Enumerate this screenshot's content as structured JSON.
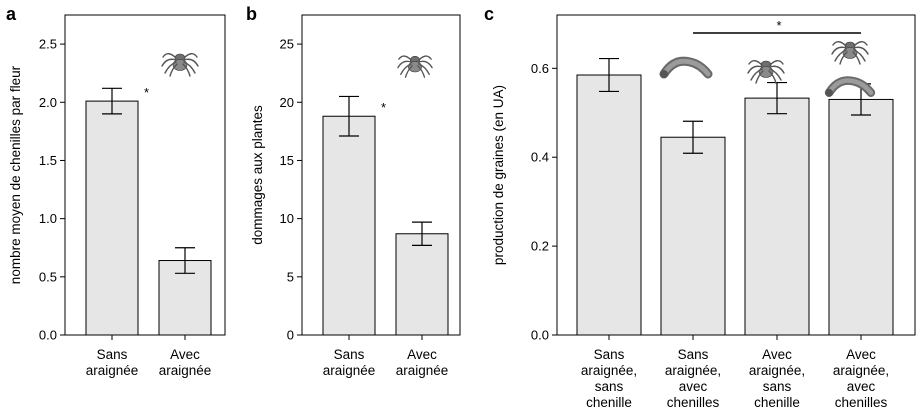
{
  "colors": {
    "bar_fill": "#e6e6e6",
    "stroke": "#000000",
    "icon": "#7a7a7a"
  },
  "chart_data": [
    {
      "panel": "a",
      "type": "bar",
      "ylabel": "nombre moyen de chenilles par fleur",
      "ylim": [
        0,
        2.75
      ],
      "yticks": [
        "0.0",
        "0.5",
        "1.0",
        "1.5",
        "2.0",
        "2.5"
      ],
      "categories": [
        [
          "Sans",
          "araignée"
        ],
        [
          "Avec",
          "araignée"
        ]
      ],
      "values": [
        2.01,
        0.64
      ],
      "errors": [
        0.11,
        0.11
      ],
      "significance": "*",
      "icons": [
        "spider-icon"
      ],
      "grid": false
    },
    {
      "panel": "b",
      "type": "bar",
      "ylabel": "dommages aux plantes",
      "ylim": [
        0,
        27.5
      ],
      "yticks": [
        "0",
        "5",
        "10",
        "15",
        "20",
        "25"
      ],
      "categories": [
        [
          "Sans",
          "araignée"
        ],
        [
          "Avec",
          "araignée"
        ]
      ],
      "values": [
        18.8,
        8.7
      ],
      "errors": [
        1.7,
        1.0
      ],
      "significance": "*",
      "icons": [
        "spider-icon"
      ],
      "grid": false
    },
    {
      "panel": "c",
      "type": "bar",
      "ylabel": "production de graines (en UA)",
      "ylim": [
        0,
        0.72
      ],
      "yticks": [
        "0.0",
        "0.2",
        "0.4",
        "0.6"
      ],
      "categories": [
        [
          "Sans",
          "araignée,",
          "sans",
          "chenille"
        ],
        [
          "Sans",
          "araignée,",
          "avec",
          "chenilles"
        ],
        [
          "Avec",
          "araignée,",
          "sans",
          "chenille"
        ],
        [
          "Avec",
          "araignée,",
          "avec",
          "chenilles"
        ]
      ],
      "values": [
        0.585,
        0.445,
        0.533,
        0.53
      ],
      "errors": [
        0.037,
        0.036,
        0.035,
        0.035
      ],
      "significance": "*",
      "icons": [
        "caterpillar-icon",
        "spider-icon",
        "spider-icon",
        "caterpillar-icon"
      ],
      "grid": false
    }
  ]
}
